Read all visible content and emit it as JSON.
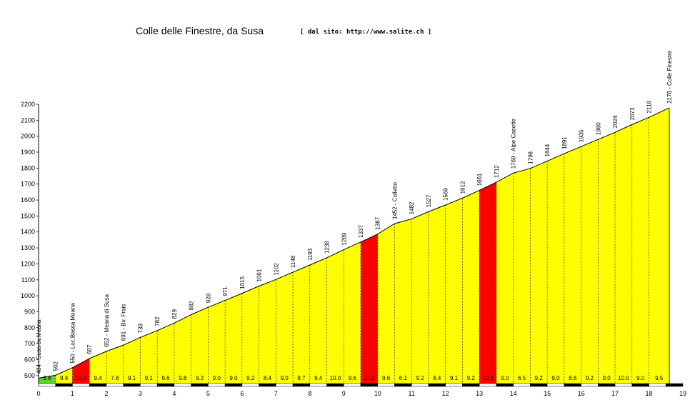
{
  "chart_data": {
    "type": "area",
    "title": "Colle delle Finestre, da Susa",
    "subtitle": "[ dal sito: http://www.salite.ch ]",
    "xlabel": "",
    "ylabel": "",
    "xlim": [
      0,
      19
    ],
    "ylim": [
      450,
      2200
    ],
    "x_ticks": [
      0,
      1,
      2,
      3,
      4,
      5,
      6,
      7,
      8,
      9,
      10,
      11,
      12,
      13,
      14,
      15,
      16,
      17,
      18,
      19
    ],
    "y_ticks": [
      500,
      600,
      700,
      800,
      900,
      1000,
      1100,
      1200,
      1300,
      1400,
      1500,
      1600,
      1700,
      1800,
      1900,
      2000,
      2100,
      2200
    ],
    "grid": false,
    "x": [
      0,
      0.5,
      1,
      1.5,
      2,
      2.5,
      3,
      3.5,
      4,
      4.5,
      5,
      5.5,
      6,
      6.5,
      7,
      7.5,
      8,
      8.5,
      9,
      9.5,
      10,
      10.5,
      11,
      11.5,
      12,
      12.5,
      13,
      13.5,
      14,
      14.5,
      15,
      15.5,
      16,
      16.5,
      17,
      17.5,
      18,
      18.6
    ],
    "altitude": [
      484,
      502,
      550,
      607,
      652,
      691,
      739,
      782,
      829,
      882,
      928,
      971,
      1015,
      1061,
      1102,
      1148,
      1193,
      1238,
      1289,
      1337,
      1387,
      1452,
      1482,
      1527,
      1569,
      1612,
      1661,
      1712,
      1769,
      1798,
      1844,
      1891,
      1935,
      1980,
      2024,
      2073,
      2118,
      2178
    ],
    "point_labels": [
      "484 - Susa-bv.Meana",
      "502",
      "550 - Loc.Bassa Meana",
      "607",
      "652 - Meana di Susa",
      "691 - Bv. Frais",
      "739",
      "782",
      "829",
      "882",
      "928",
      "971",
      "1015",
      "1061",
      "1102",
      "1148",
      "1193",
      "1238",
      "1289",
      "1337",
      "1387",
      "1452 - Colletto",
      "1482",
      "1527",
      "1569",
      "1612",
      "1661",
      "1712",
      "1769 - Alpe Casette",
      "1798",
      "1844",
      "1891",
      "1935",
      "1980",
      "2024",
      "2073",
      "2118",
      "2178 - Colle Finestre"
    ],
    "segment_gradients": [
      "3.6",
      "9.4",
      "11.4",
      "9.4",
      "7.8",
      "9.1",
      "9.1",
      "9.6",
      "9.8",
      "9.2",
      "9.0",
      "9.0",
      "9.2",
      "8.4",
      "9.0",
      "8.7",
      "9.4",
      "10.0",
      "9.6",
      "10.2",
      "9.6",
      "6.1",
      "9.2",
      "8.4",
      "9.1",
      "9.2",
      "10.2",
      "9.0",
      "6.5",
      "9.2",
      "9.0",
      "8.6",
      "9.2",
      "9.0",
      "10.0",
      "9.0",
      "9.5"
    ],
    "gradient_classes": {
      "easy": {
        "max": 5,
        "color": "#66cc33"
      },
      "hard": {
        "max": 10,
        "color": "#ffff00"
      },
      "steep": {
        "color": "#ff0000"
      }
    },
    "outline_color": "#000000",
    "divider_color": "#000000"
  }
}
